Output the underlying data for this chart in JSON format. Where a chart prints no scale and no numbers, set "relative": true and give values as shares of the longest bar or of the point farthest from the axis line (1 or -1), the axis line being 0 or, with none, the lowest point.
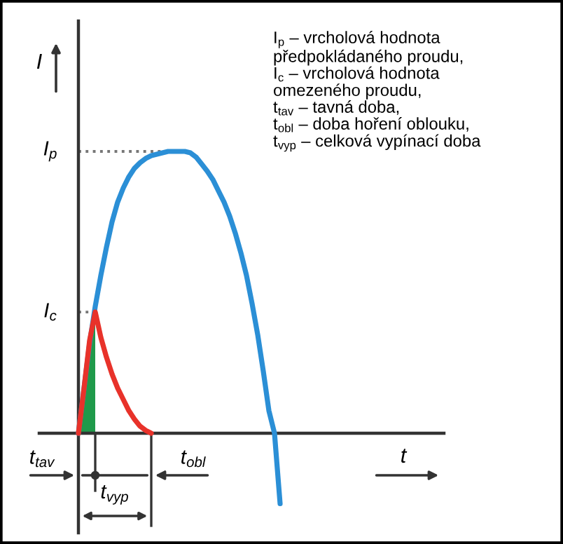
{
  "chart_data": {
    "type": "line",
    "relative": true,
    "ylabel": "I",
    "categories": [
      null,
      null,
      null,
      null,
      null,
      null,
      null,
      null,
      null,
      null,
      null,
      null,
      null,
      null,
      null,
      null,
      null,
      null,
      null,
      null,
      null,
      null,
      null,
      null,
      null,
      null,
      null,
      null,
      null,
      null,
      null,
      null,
      null,
      null,
      null,
      null,
      null
    ],
    "series": [
      {
        "color": "#2b8fd6",
        "values": [
          0,
          0.16,
          0.32,
          0.45,
          0.56,
          0.66,
          0.75,
          0.82,
          0.87,
          0.91,
          0.94,
          0.96,
          0.975,
          0.985,
          0.99,
          0.995,
          1,
          1,
          1,
          1,
          0.995,
          0.98,
          0.955,
          0.93,
          0.9,
          0.86,
          0.82,
          0.77,
          0.71,
          0.64,
          0.56,
          0.46,
          0.35,
          0.22,
          0.08,
          0,
          -0.25
        ]
      },
      {
        "type": "area",
        "color": "#1f9a4a",
        "values": [
          0,
          0.16,
          0.33,
          0.43,
          null,
          null,
          null,
          null,
          null,
          null,
          null,
          null,
          null,
          null,
          null,
          null,
          null,
          null,
          null,
          null,
          null,
          null,
          null,
          null,
          null,
          null,
          null,
          null,
          null,
          null,
          null,
          null,
          null,
          null,
          null,
          null,
          null
        ]
      },
      {
        "color": "#e8322a",
        "values": [
          0,
          0.16,
          0.33,
          0.43,
          0.34,
          0.27,
          0.21,
          0.16,
          0.12,
          0.08,
          0.05,
          0.025,
          0.01,
          0,
          null,
          null,
          null,
          null,
          null,
          null,
          null,
          null,
          null,
          null,
          null,
          null,
          null,
          null,
          null,
          null,
          null,
          null,
          null,
          null,
          null,
          null,
          null
        ]
      }
    ],
    "ref_lines": [
      {
        "axis": "y",
        "value": 1,
        "label": "I$_{p}$",
        "color": "#777777",
        "line_style": "dotted"
      },
      {
        "axis": "y",
        "value": 0.43,
        "label": "I$_{c}$",
        "color": "#777777",
        "line_style": "dotted"
      }
    ],
    "annotations": [
      "t$_{tav}$",
      "t$_{obl}$",
      "t$_{vyp}$",
      "t",
      "I$_{p}$ – vrcholová hodnota\npředpokládaného proudu,\nI$_{c}$ – vrcholová hodnota\nomezeného proudu,\nt$_{tav}$ – tavná doba,\nt$_{obl}$ – doba hoření oblouku,\nt$_{vyp}$ – celková vypínací doba"
    ]
  }
}
